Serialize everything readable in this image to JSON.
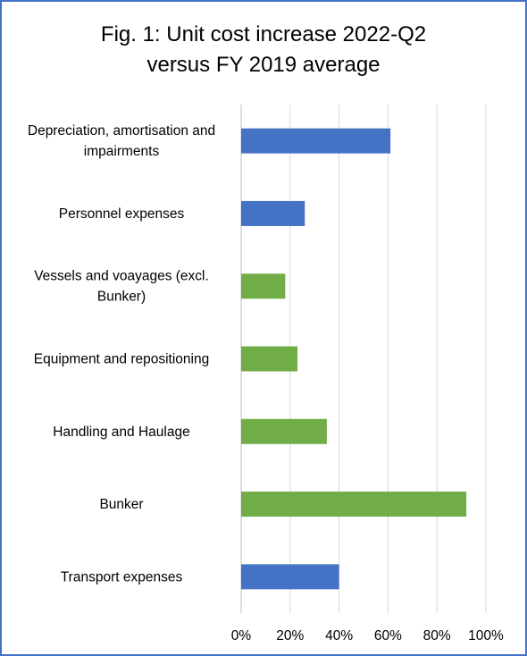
{
  "chart_data": {
    "type": "bar",
    "orientation": "horizontal",
    "title": "Fig. 1: Unit cost increase 2022-Q2 versus FY 2019 average",
    "title_lines": [
      "Fig. 1: Unit cost increase 2022-Q2",
      "versus FY 2019 average"
    ],
    "categories": [
      "Depreciation, amortisation and impairments",
      "Personnel expenses",
      "Vessels and voayages (excl. Bunker)",
      "Equipment and repositioning",
      "Handling and Haulage",
      "Bunker",
      "Transport expenses"
    ],
    "category_lines": [
      [
        "Depreciation, amortisation and",
        "impairments"
      ],
      [
        "Personnel expenses"
      ],
      [
        "Vessels and voayages (excl.",
        "Bunker)"
      ],
      [
        "Equipment and repositioning"
      ],
      [
        "Handling and Haulage"
      ],
      [
        "Bunker"
      ],
      [
        "Transport expenses"
      ]
    ],
    "values": [
      0.61,
      0.26,
      0.18,
      0.23,
      0.35,
      0.92,
      0.4
    ],
    "bar_colors": [
      "#4472c4",
      "#4472c4",
      "#70ad47",
      "#70ad47",
      "#70ad47",
      "#70ad47",
      "#4472c4"
    ],
    "xlim": [
      0,
      1
    ],
    "xticks": [
      0,
      0.2,
      0.4,
      0.6,
      0.8,
      1.0
    ],
    "xtick_labels": [
      "0%",
      "20%",
      "40%",
      "60%",
      "80%",
      "100%"
    ],
    "xlabel": "",
    "ylabel": "",
    "grid": true,
    "legend": "none"
  }
}
